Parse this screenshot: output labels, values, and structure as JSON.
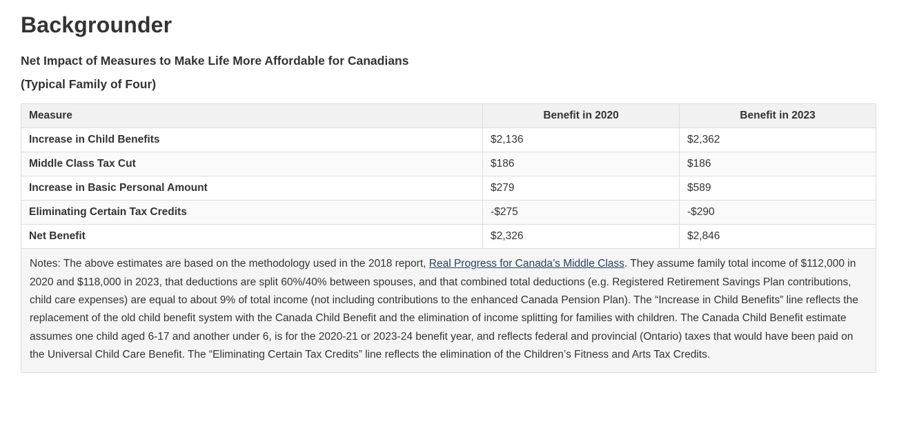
{
  "page": {
    "title": "Backgrounder",
    "subtitle_line1": "Net Impact of Measures to Make Life More Affordable for Canadians",
    "subtitle_line2": "(Typical Family of Four)"
  },
  "table": {
    "headers": [
      "Measure",
      "Benefit in 2020",
      "Benefit in 2023"
    ],
    "rows": [
      {
        "measure": "Increase in Child Benefits",
        "b2020": "$2,136",
        "b2023": "$2,362"
      },
      {
        "measure": "Middle Class Tax Cut",
        "b2020": "$186",
        "b2023": "$186"
      },
      {
        "measure": "Increase in Basic Personal Amount",
        "b2020": "$279",
        "b2023": "$589"
      },
      {
        "measure": "Eliminating Certain Tax Credits",
        "b2020": "-$275",
        "b2023": "-$290"
      },
      {
        "measure": "Net Benefit",
        "b2020": "$2,326",
        "b2023": "$2,846"
      }
    ],
    "notes": {
      "prefix": "Notes: The above estimates are based on the methodology used in the 2018 report, ",
      "link": "Real Progress for Canada’s Middle Class",
      "suffix": ". They assume family total income of $112,000 in 2020 and $118,000 in 2023, that deductions are split 60%/40% between spouses, and that combined total deductions (e.g. Registered Retirement Savings Plan contributions, child care expenses) are equal to about 9% of total income (not including contributions to the enhanced Canada Pension Plan). The “Increase in Child Benefits” line reflects the replacement of the old child benefit system with the Canada Child Benefit and the elimination of income splitting for families with children. The Canada Child Benefit estimate assumes one child aged 6-17 and another under 6, is for the 2020-21 or 2023-24 benefit year, and reflects federal and provincial (Ontario) taxes that would have been paid on the Universal Child Care Benefit. The “Eliminating Certain Tax Credits” line reflects the elimination of the Children’s Fitness and Arts Tax Credits."
    }
  },
  "colors": {
    "text": "#333333",
    "link": "#284162",
    "header_bg": "#f1f1f1",
    "notes_bg": "#f5f5f5",
    "border": "#dddddd"
  }
}
